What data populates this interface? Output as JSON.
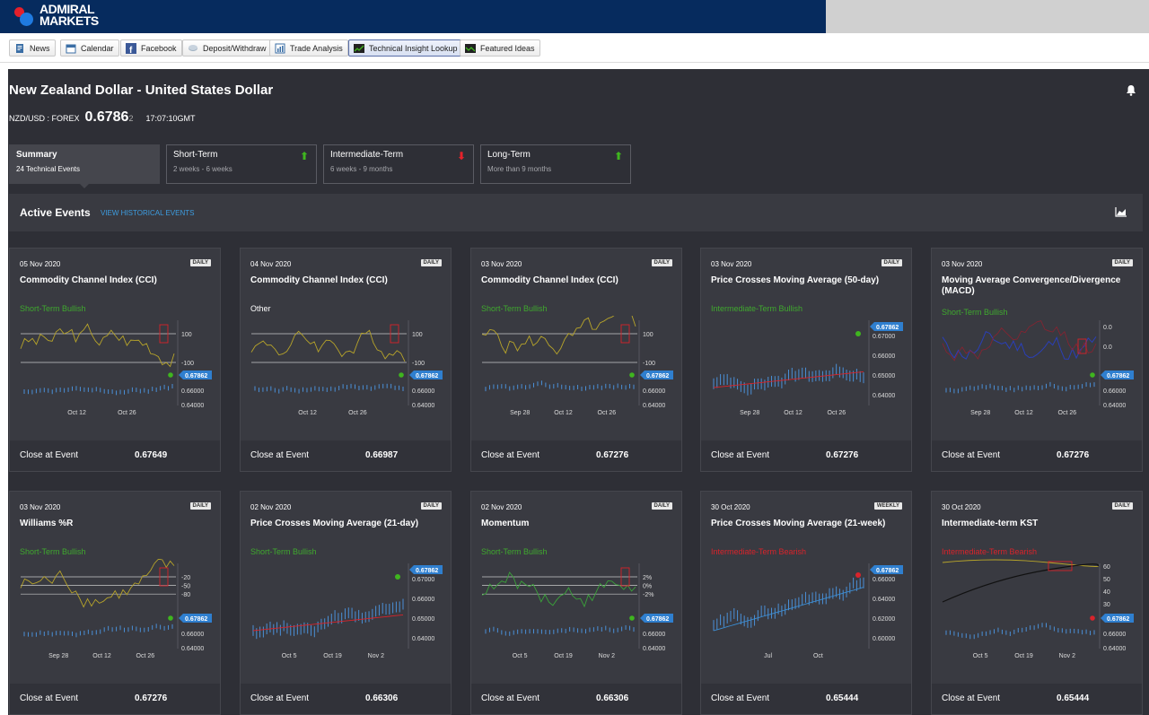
{
  "brand": {
    "line1": "ADMIRAL",
    "line2": "MARKETS"
  },
  "toolbar": {
    "items": [
      {
        "label": "News",
        "icon": "news-icon"
      },
      {
        "label": "Calendar",
        "icon": "calendar-icon"
      },
      {
        "label": "Facebook",
        "icon": "facebook-icon"
      },
      {
        "label": "Deposit/Withdraw",
        "icon": "deposit-icon"
      },
      {
        "label": "Trade Analysis",
        "icon": "trade-analysis-icon"
      },
      {
        "label": "Technical Insight Lookup",
        "icon": "technical-insight-icon",
        "active": true
      },
      {
        "label": "Featured Ideas",
        "icon": "featured-ideas-icon"
      }
    ]
  },
  "instrument": {
    "title": "New Zealand Dollar - United States Dollar",
    "symbol": "NZD/USD : FOREX",
    "price": "0.6786",
    "pip": "2",
    "time": "17:07:10GMT"
  },
  "tabs": [
    {
      "label": "Summary",
      "sub": "24 Technical Events",
      "arrow": ""
    },
    {
      "label": "Short-Term",
      "sub": "2 weeks - 6 weeks",
      "arrow": "up"
    },
    {
      "label": "Intermediate-Term",
      "sub": "6 weeks - 9 months",
      "arrow": "down"
    },
    {
      "label": "Long-Term",
      "sub": "More than 9 months",
      "arrow": "up"
    }
  ],
  "events": {
    "title": "Active Events",
    "link": "VIEW HISTORICAL EVENTS"
  },
  "footer_label": "Close at Event",
  "price_tag": "0.67862",
  "colors": {
    "bull": "#3fa92e",
    "bear": "#d9232b",
    "accent": "#3d9de0"
  },
  "cards": [
    {
      "date": "05 Nov 2020",
      "badge": "DAILY",
      "title": "Commodity Channel Index (CCI)",
      "sentiment": "Short-Term Bullish",
      "sclass": "bull",
      "close": "0.67649",
      "ind": "cci",
      "ticks": [
        "100",
        "-100"
      ],
      "xticks": [
        "Oct 12",
        "Oct 26"
      ]
    },
    {
      "date": "04 Nov 2020",
      "badge": "DAILY",
      "title": "Commodity Channel Index (CCI)",
      "sentiment": "Other",
      "sclass": "other",
      "close": "0.66987",
      "ind": "cci",
      "ticks": [
        "100",
        "-100"
      ],
      "xticks": [
        "Oct 12",
        "Oct 26"
      ]
    },
    {
      "date": "03 Nov 2020",
      "badge": "DAILY",
      "title": "Commodity Channel Index (CCI)",
      "sentiment": "Short-Term Bullish",
      "sclass": "bull",
      "close": "0.67276",
      "ind": "cci",
      "ticks": [
        "100",
        "-100"
      ],
      "xticks": [
        "Sep 28",
        "Oct 12",
        "Oct 26"
      ]
    },
    {
      "date": "03 Nov 2020",
      "badge": "DAILY",
      "title": "Price Crosses Moving Average (50-day)",
      "sentiment": "Intermediate-Term Bullish",
      "sclass": "bull",
      "close": "0.67276",
      "ind": "ma",
      "ticks": [
        "0.67000",
        "0.66000",
        "0.65000",
        "0.64000"
      ],
      "xticks": [
        "Sep 28",
        "Oct 12",
        "Oct 26"
      ]
    },
    {
      "date": "03 Nov 2020",
      "badge": "DAILY",
      "title": "Moving Average Convergence/Divergence (MACD)",
      "sentiment": "Short-Term Bullish",
      "sclass": "bull",
      "close": "0.67276",
      "ind": "macd",
      "ticks": [
        "0.0",
        "0.0"
      ],
      "xticks": [
        "Sep 28",
        "Oct 12",
        "Oct 26"
      ]
    },
    {
      "date": "03 Nov 2020",
      "badge": "DAILY",
      "title": "Williams %R",
      "sentiment": "Short-Term Bullish",
      "sclass": "bull",
      "close": "0.67276",
      "ind": "willr",
      "ticks": [
        "-20",
        "-50",
        "-80"
      ],
      "xticks": [
        "Sep 28",
        "Oct 12",
        "Oct 26"
      ]
    },
    {
      "date": "02 Nov 2020",
      "badge": "DAILY",
      "title": "Price Crosses Moving Average (21-day)",
      "sentiment": "Short-Term Bullish",
      "sclass": "bull",
      "close": "0.66306",
      "ind": "ma",
      "ticks": [
        "0.67000",
        "0.66000",
        "0.65000",
        "0.64000"
      ],
      "xticks": [
        "Oct 5",
        "Oct 19",
        "Nov 2"
      ]
    },
    {
      "date": "02 Nov 2020",
      "badge": "DAILY",
      "title": "Momentum",
      "sentiment": "Short-Term Bullish",
      "sclass": "bull",
      "close": "0.66306",
      "ind": "mom",
      "ticks": [
        "2%",
        "0%",
        "-2%"
      ],
      "xticks": [
        "Oct 5",
        "Oct 19",
        "Nov 2"
      ]
    },
    {
      "date": "30 Oct 2020",
      "badge": "WEEKLY",
      "title": "Price Crosses Moving Average (21-week)",
      "sentiment": "Intermediate-Term Bearish",
      "sclass": "bear",
      "close": "0.65444",
      "ind": "maw",
      "ticks": [
        "0.66000",
        "0.64000",
        "0.62000",
        "0.60000"
      ],
      "xticks": [
        "Jul",
        "Oct"
      ]
    },
    {
      "date": "30 Oct 2020",
      "badge": "DAILY",
      "title": "Intermediate-term KST",
      "sentiment": "Intermediate-Term Bearish",
      "sclass": "bear",
      "close": "0.65444",
      "ind": "kst",
      "ticks": [
        "60",
        "50",
        "40",
        "30"
      ],
      "xticks": [
        "Oct 5",
        "Oct 19",
        "Nov 2"
      ]
    }
  ],
  "price_axis": [
    "0.66000",
    "0.64000"
  ]
}
